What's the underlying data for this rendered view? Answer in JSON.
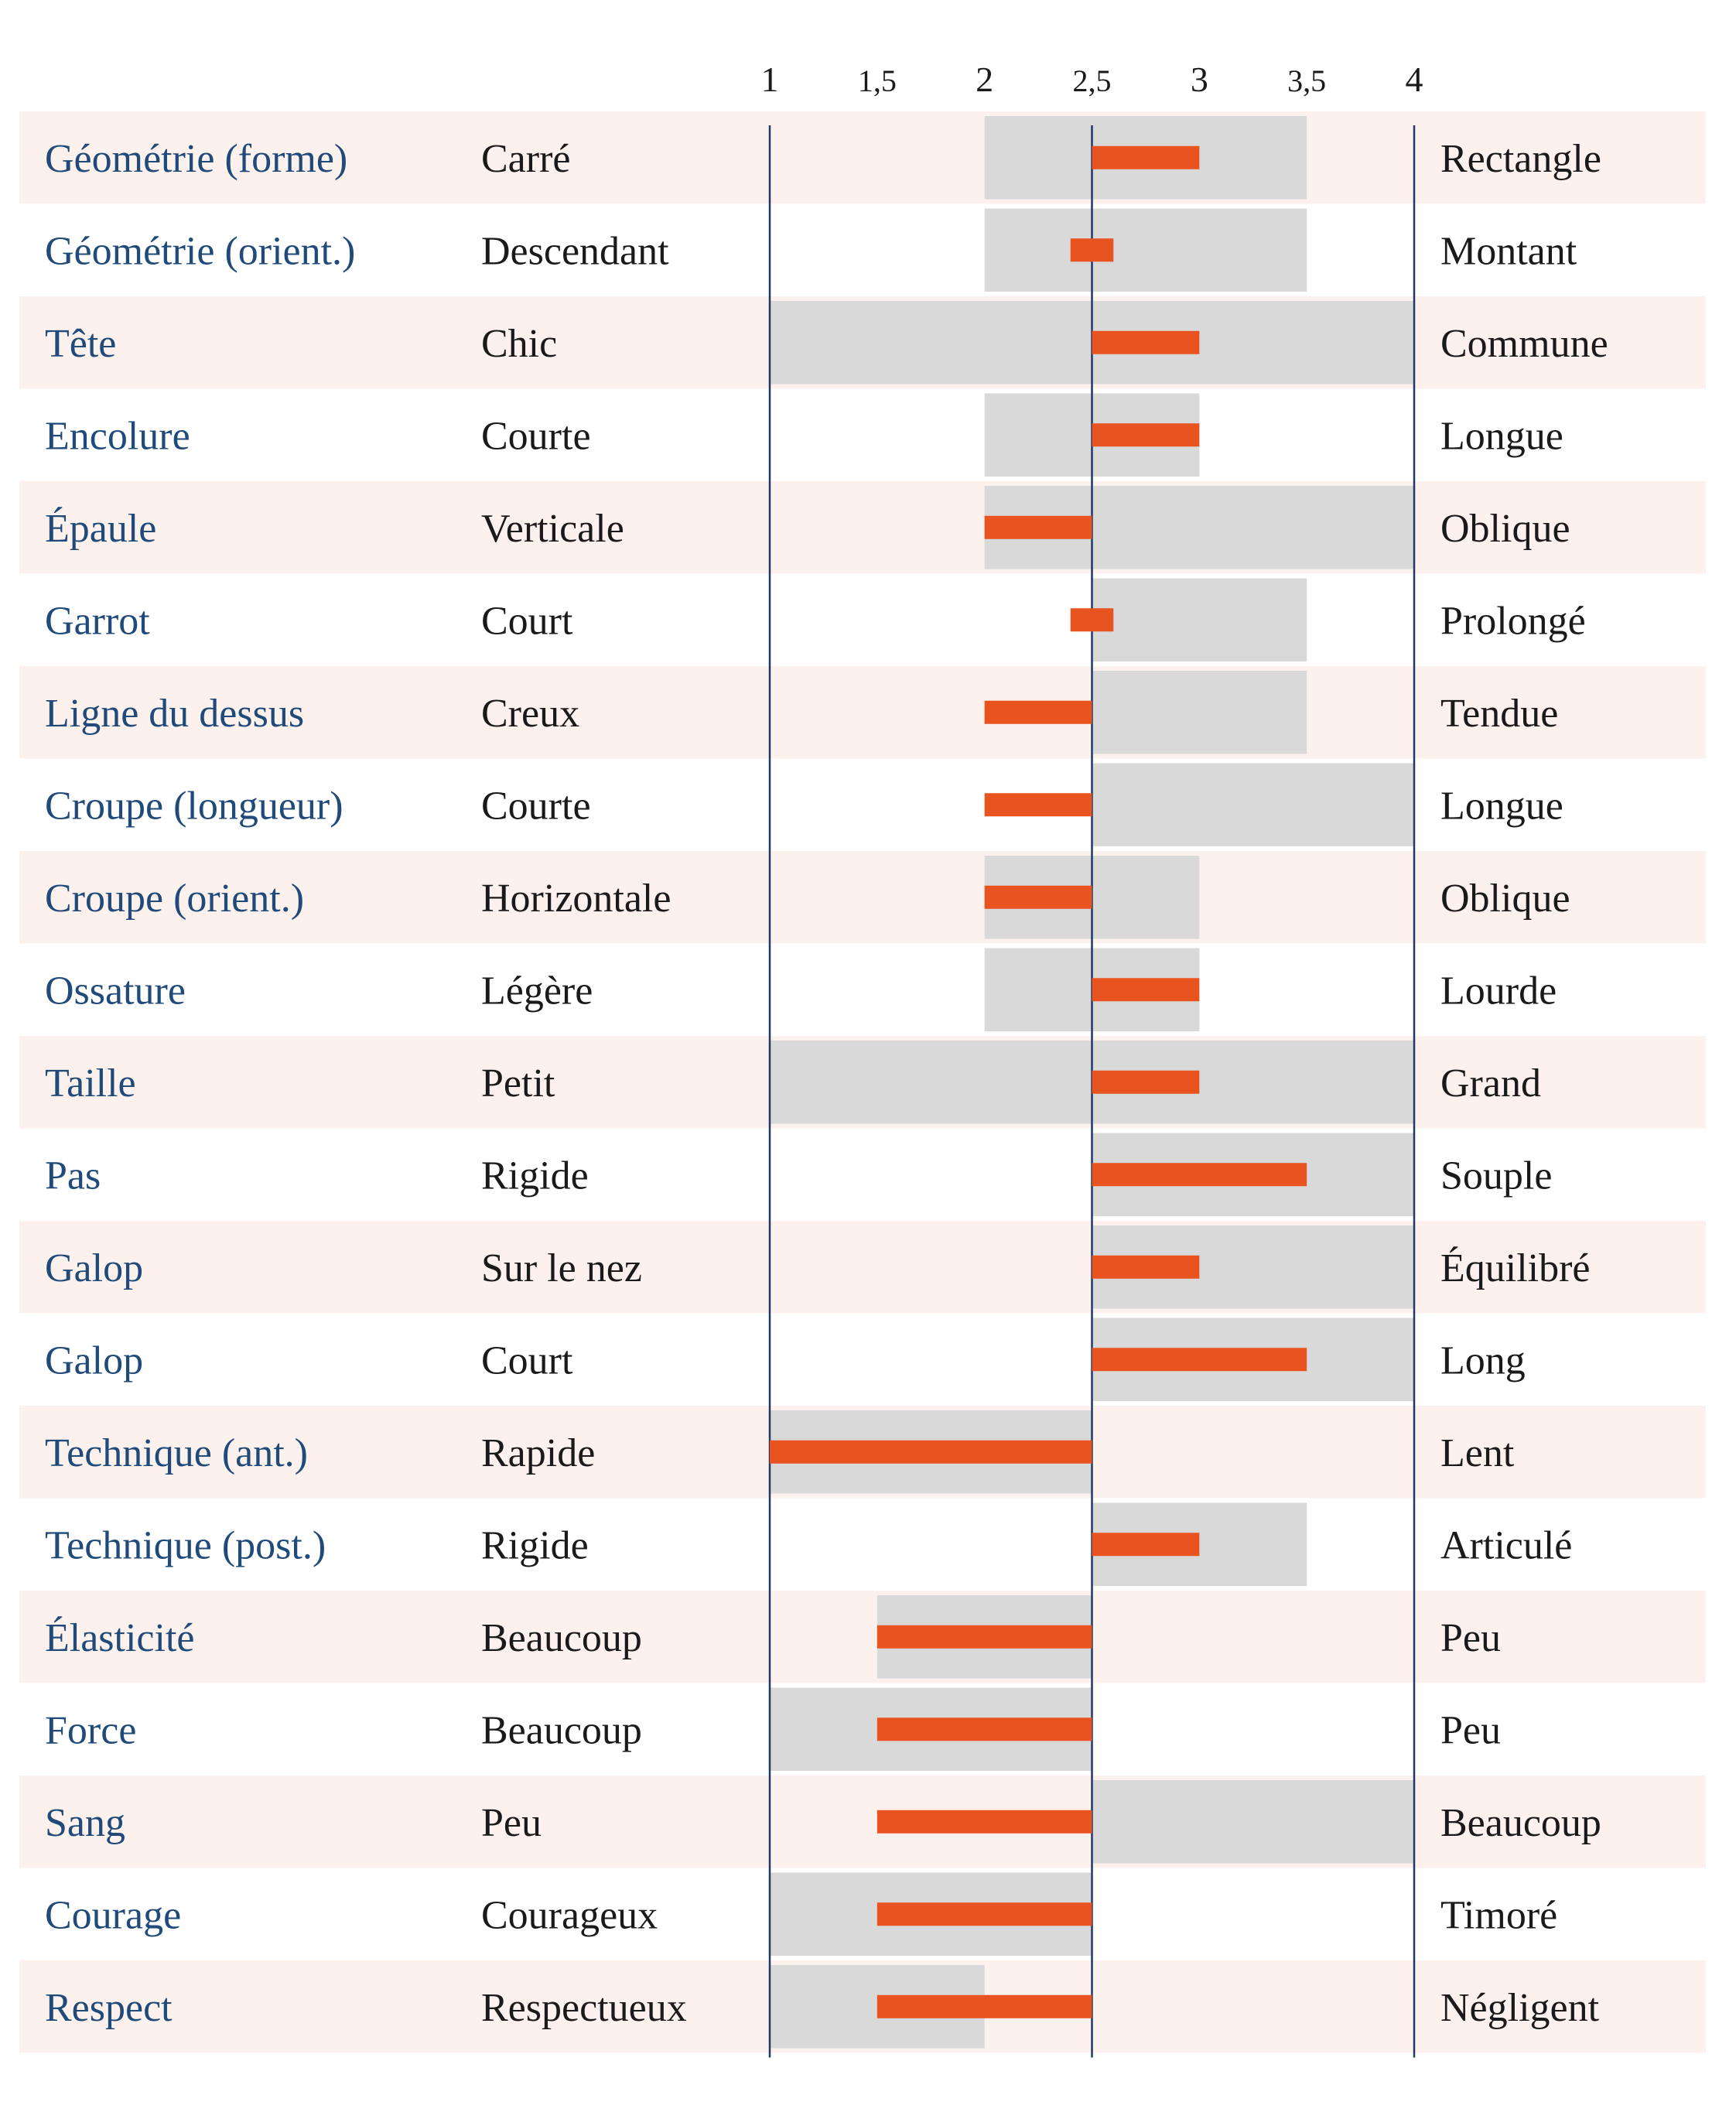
{
  "colors": {
    "accent": "#e8531f",
    "range": "#d9d9d9",
    "row_band": "#fcf1ec",
    "trait_text": "#1f4a7a",
    "axis_line": "#1f3a66"
  },
  "chart_data": {
    "type": "bar",
    "x_ticks": [
      "1",
      "1,5",
      "2",
      "2,5",
      "3",
      "3,5",
      "4"
    ],
    "xlim": [
      1,
      4
    ],
    "center": 2.5,
    "grid": false,
    "rows": [
      {
        "trait": "Géométrie (forme)",
        "low": "Carré",
        "high": "Rectangle",
        "range": [
          2,
          3.5
        ],
        "value": 3
      },
      {
        "trait": "Géométrie (orient.)",
        "low": "Descendant",
        "high": "Montant",
        "range": [
          2,
          3.5
        ],
        "value": 2.6,
        "value_start": 2.4
      },
      {
        "trait": "Tête",
        "low": "Chic",
        "high": "Commune",
        "range": [
          1,
          4
        ],
        "value": 3
      },
      {
        "trait": "Encolure",
        "low": "Courte",
        "high": "Longue",
        "range": [
          2,
          3
        ],
        "value": 3
      },
      {
        "trait": "Épaule",
        "low": "Verticale",
        "high": "Oblique",
        "range": [
          2,
          4
        ],
        "value": 2
      },
      {
        "trait": "Garrot",
        "low": "Court",
        "high": "Prolongé",
        "range": [
          2.5,
          3.5
        ],
        "value": 2.6,
        "value_start": 2.4
      },
      {
        "trait": "Ligne du dessus",
        "low": "Creux",
        "high": "Tendue",
        "range": [
          2.5,
          3.5
        ],
        "value": 2
      },
      {
        "trait": "Croupe (longueur)",
        "low": "Courte",
        "high": "Longue",
        "range": [
          2.5,
          4
        ],
        "value": 2
      },
      {
        "trait": "Croupe (orient.)",
        "low": "Horizontale",
        "high": "Oblique",
        "range": [
          2,
          3
        ],
        "value": 2
      },
      {
        "trait": "Ossature",
        "low": "Légère",
        "high": "Lourde",
        "range": [
          2,
          3
        ],
        "value": 3
      },
      {
        "trait": "Taille",
        "low": "Petit",
        "high": "Grand",
        "range": [
          1,
          4
        ],
        "value": 3
      },
      {
        "trait": "Pas",
        "low": "Rigide",
        "high": "Souple",
        "range": [
          2.5,
          4
        ],
        "value": 3.5
      },
      {
        "trait": "Galop",
        "low": "Sur le nez",
        "high": "Équilibré",
        "range": [
          2.5,
          4
        ],
        "value": 3
      },
      {
        "trait": "Galop",
        "low": "Court",
        "high": "Long",
        "range": [
          2.5,
          4
        ],
        "value": 3.5
      },
      {
        "trait": "Technique (ant.)",
        "low": "Rapide",
        "high": "Lent",
        "range": [
          1,
          2.5
        ],
        "value": 1
      },
      {
        "trait": "Technique (post.)",
        "low": "Rigide",
        "high": "Articulé",
        "range": [
          2.5,
          3.5
        ],
        "value": 3
      },
      {
        "trait": "Élasticité",
        "low": "Beaucoup",
        "high": "Peu",
        "range": [
          1.5,
          2.5
        ],
        "value": 1.5
      },
      {
        "trait": "Force",
        "low": "Beaucoup",
        "high": "Peu",
        "range": [
          1,
          2.5
        ],
        "value": 1.5
      },
      {
        "trait": "Sang",
        "low": "Peu",
        "high": "Beaucoup",
        "range": [
          2.5,
          4
        ],
        "value": 1.5
      },
      {
        "trait": "Courage",
        "low": "Courageux",
        "high": "Timoré",
        "range": [
          1,
          2.5
        ],
        "value": 1.5
      },
      {
        "trait": "Respect",
        "low": "Respectueux",
        "high": "Négligent",
        "range": [
          1,
          2
        ],
        "value": 1.5
      }
    ]
  }
}
